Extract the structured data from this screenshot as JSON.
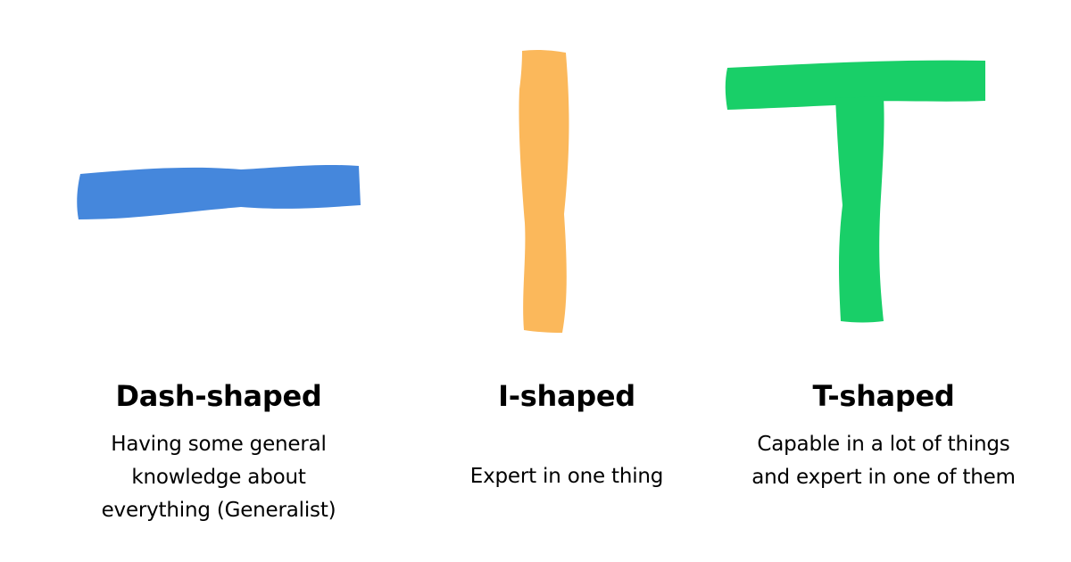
{
  "colors": {
    "dash": "#4587DC",
    "i": "#FBB85B",
    "t": "#19CF68",
    "text": "#000000",
    "background": "#FFFFFF"
  },
  "shapes": [
    {
      "id": "dash",
      "title": "Dash-shaped",
      "description": "Having some general knowledge about everything (Generalist)"
    },
    {
      "id": "i",
      "title": "I-shaped",
      "description": "Expert in one thing"
    },
    {
      "id": "t",
      "title": "T-shaped",
      "description": "Capable in a lot of things and expert in one of them"
    }
  ]
}
